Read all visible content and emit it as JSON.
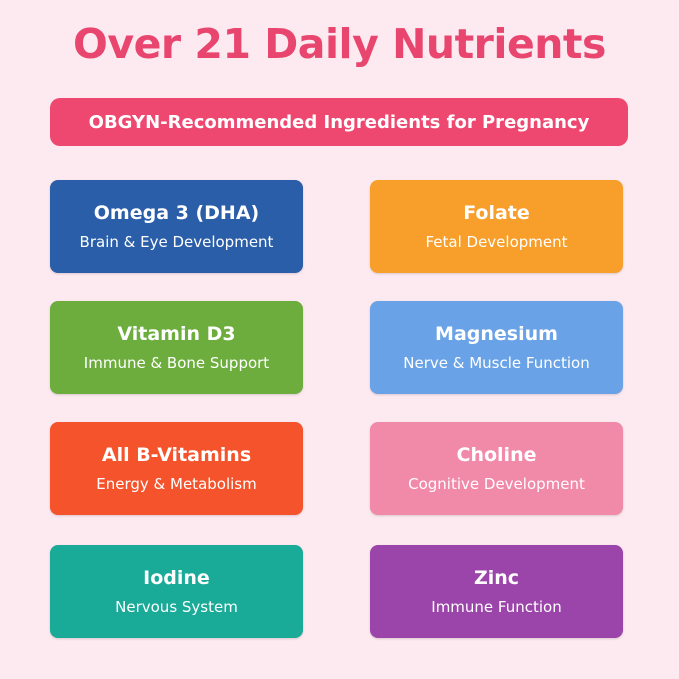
{
  "title": "Over 21 Daily Nutrients",
  "banner": "OBGYN-Recommended Ingredients for Pregnancy",
  "colors": {
    "background": "#fdeaf0",
    "title": "#e9466f",
    "banner": "#ee4770"
  },
  "nutrients": [
    {
      "name": "Omega 3 (DHA)",
      "description": "Brain & Eye Development",
      "color": "#2a5ea8"
    },
    {
      "name": "Folate",
      "description": "Fetal Development",
      "color": "#f89e2a"
    },
    {
      "name": "Vitamin D3",
      "description": "Immune & Bone Support",
      "color": "#6cad3d"
    },
    {
      "name": "Magnesium",
      "description": "Nerve & Muscle Function",
      "color": "#69a2e6"
    },
    {
      "name": "All B-Vitamins",
      "description": "Energy & Metabolism",
      "color": "#f4532c"
    },
    {
      "name": "Choline",
      "description": "Cognitive Development",
      "color": "#f189a9"
    },
    {
      "name": "Iodine",
      "description": "Nervous System",
      "color": "#19aa98"
    },
    {
      "name": "Zinc",
      "description": "Immune Function",
      "color": "#9b44a9"
    }
  ]
}
